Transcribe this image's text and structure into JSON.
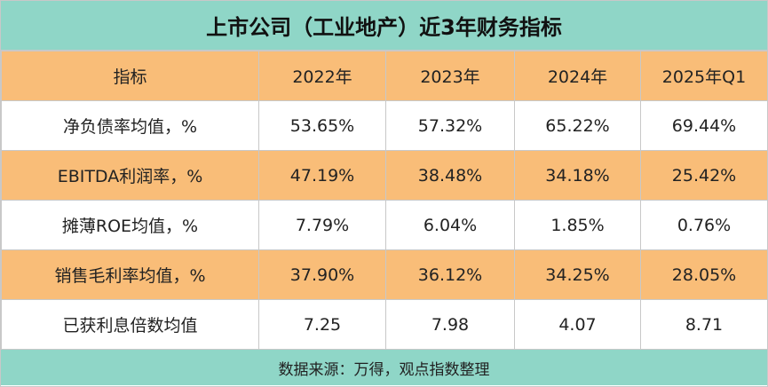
{
  "header": {
    "title": "上市公司（工业地产）近3年财务指标"
  },
  "table": {
    "columns": [
      "指标",
      "2022年",
      "2023年",
      "2024年",
      "2025年Q1"
    ],
    "rows": [
      [
        "净负债率均值，%",
        "53.65%",
        "57.32%",
        "65.22%",
        "69.44%"
      ],
      [
        "EBITDA利润率，%",
        "47.19%",
        "38.48%",
        "34.18%",
        "25.42%"
      ],
      [
        "摊薄ROE均值，%",
        "7.79%",
        "6.04%",
        "1.85%",
        "0.76%"
      ],
      [
        "销售毛利率均值，%",
        "37.90%",
        "36.12%",
        "34.25%",
        "28.05%"
      ],
      [
        "已获利息倍数均值",
        "7.25",
        "7.98",
        "4.07",
        "8.71"
      ]
    ]
  },
  "footer": {
    "source": "数据来源：万得，观点指数整理"
  }
}
